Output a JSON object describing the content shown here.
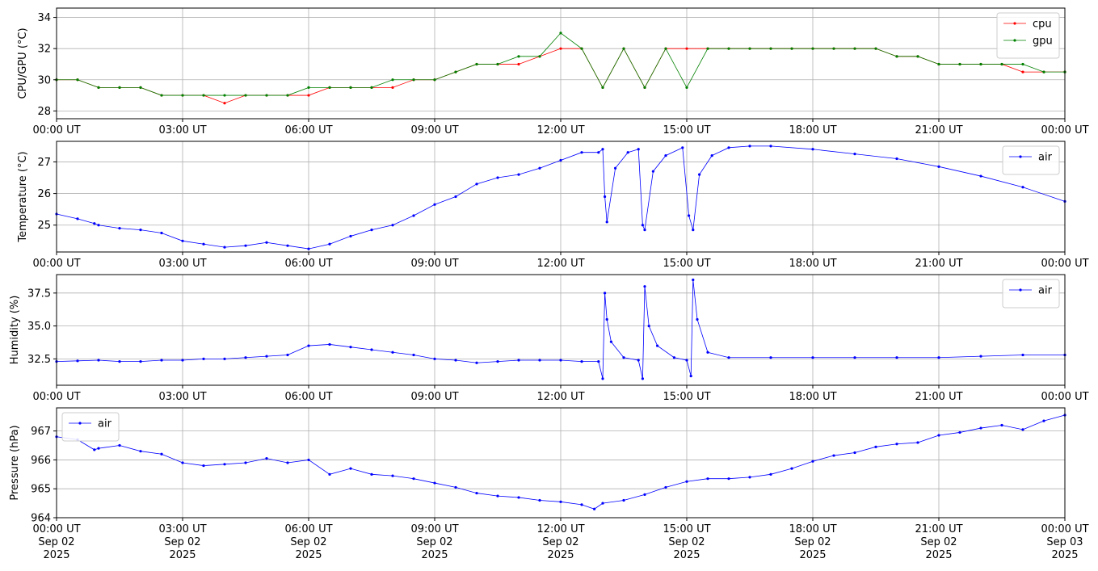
{
  "chart_data": [
    {
      "type": "line",
      "ylabel": "CPU/GPU (°C)",
      "ylim": [
        27.5,
        34.6
      ],
      "yticks": [
        28,
        30,
        32,
        34
      ],
      "ytick_labels": [
        "28",
        "30",
        "32",
        "34"
      ],
      "xlim": [
        "2025-09-02 00:00 UT",
        "2025-09-03 00:00 UT"
      ],
      "xticks": [
        "2025-09-02 00:00",
        "2025-09-02 03:00",
        "2025-09-02 06:00",
        "2025-09-02 09:00",
        "2025-09-02 12:00",
        "2025-09-02 15:00",
        "2025-09-02 18:00",
        "2025-09-02 21:00",
        "2025-09-03 00:00"
      ],
      "xtick_labels": [
        "00:00 UT",
        "03:00 UT",
        "06:00 UT",
        "09:00 UT",
        "12:00 UT",
        "15:00 UT",
        "18:00 UT",
        "21:00 UT",
        "00:00 UT"
      ],
      "grid": true,
      "legend": "upper right",
      "series": [
        {
          "name": "cpu",
          "color": "#ff0000",
          "x_hours": [
            0,
            0.5,
            1,
            1.5,
            2,
            2.5,
            3,
            3.5,
            4,
            4.5,
            5,
            5.5,
            6,
            6.5,
            7,
            7.5,
            8,
            8.5,
            9,
            9.5,
            10,
            10.5,
            11,
            11.5,
            12,
            12.5,
            13,
            13.5,
            14,
            14.5,
            15,
            15.5,
            16,
            16.5,
            17,
            17.5,
            18,
            18.5,
            19,
            19.5,
            20,
            20.5,
            21,
            21.5,
            22,
            22.5,
            23,
            23.5,
            24
          ],
          "values": [
            30.0,
            30.0,
            29.5,
            29.5,
            29.5,
            29.0,
            29.0,
            29.0,
            28.5,
            29.0,
            29.0,
            29.0,
            29.0,
            29.5,
            29.5,
            29.5,
            29.5,
            30.0,
            30.0,
            30.5,
            31.0,
            31.0,
            31.0,
            31.5,
            32.0,
            32.0,
            29.5,
            32.0,
            29.5,
            32.0,
            32.0,
            32.0,
            32.0,
            32.0,
            32.0,
            32.0,
            32.0,
            32.0,
            32.0,
            32.0,
            31.5,
            31.5,
            31.0,
            31.0,
            31.0,
            31.0,
            30.5,
            30.5,
            30.5
          ]
        },
        {
          "name": "gpu",
          "color": "#008000",
          "x_hours": [
            0,
            0.5,
            1,
            1.5,
            2,
            2.5,
            3,
            3.5,
            4,
            4.5,
            5,
            5.5,
            6,
            6.5,
            7,
            7.5,
            8,
            8.5,
            9,
            9.5,
            10,
            10.5,
            11,
            11.5,
            12,
            12.5,
            13,
            13.5,
            14,
            14.5,
            15,
            15.5,
            16,
            16.5,
            17,
            17.5,
            18,
            18.5,
            19,
            19.5,
            20,
            20.5,
            21,
            21.5,
            22,
            22.5,
            23,
            23.5,
            24
          ],
          "values": [
            30.0,
            30.0,
            29.5,
            29.5,
            29.5,
            29.0,
            29.0,
            29.0,
            29.0,
            29.0,
            29.0,
            29.0,
            29.5,
            29.5,
            29.5,
            29.5,
            30.0,
            30.0,
            30.0,
            30.5,
            31.0,
            31.0,
            31.5,
            31.5,
            33.0,
            32.0,
            29.5,
            32.0,
            29.5,
            32.0,
            29.5,
            32.0,
            32.0,
            32.0,
            32.0,
            32.0,
            32.0,
            32.0,
            32.0,
            32.0,
            31.5,
            31.5,
            31.0,
            31.0,
            31.0,
            31.0,
            31.0,
            30.5,
            30.5
          ]
        }
      ]
    },
    {
      "type": "line",
      "ylabel": "Temperature (°C)",
      "ylim": [
        24.15,
        27.65
      ],
      "yticks": [
        25,
        26,
        27
      ],
      "ytick_labels": [
        "25",
        "26",
        "27"
      ],
      "xlim": [
        "2025-09-02 00:00 UT",
        "2025-09-03 00:00 UT"
      ],
      "xtick_labels": [
        "00:00 UT",
        "03:00 UT",
        "06:00 UT",
        "09:00 UT",
        "12:00 UT",
        "15:00 UT",
        "18:00 UT",
        "21:00 UT",
        "00:00 UT"
      ],
      "grid": true,
      "legend": "upper right",
      "series": [
        {
          "name": "air",
          "color": "#0000ff",
          "x_hours": [
            0,
            0.5,
            0.9,
            1.0,
            1.5,
            2.0,
            2.5,
            3.0,
            3.5,
            4.0,
            4.5,
            5.0,
            5.5,
            6.0,
            6.5,
            7.0,
            7.5,
            8.0,
            8.5,
            9.0,
            9.5,
            10.0,
            10.5,
            11.0,
            11.5,
            12.0,
            12.5,
            12.9,
            13.0,
            13.05,
            13.1,
            13.3,
            13.6,
            13.85,
            13.95,
            14.0,
            14.2,
            14.5,
            14.9,
            15.05,
            15.15,
            15.3,
            15.6,
            16.0,
            16.5,
            17.0,
            18.0,
            19.0,
            20.0,
            21.0,
            22.0,
            23.0,
            24.0
          ],
          "values": [
            25.35,
            25.2,
            25.05,
            25.0,
            24.9,
            24.85,
            24.75,
            24.5,
            24.4,
            24.3,
            24.35,
            24.45,
            24.35,
            24.25,
            24.4,
            24.65,
            24.85,
            25.0,
            25.3,
            25.65,
            25.9,
            26.3,
            26.5,
            26.6,
            26.8,
            27.05,
            27.3,
            27.3,
            27.4,
            25.9,
            25.1,
            26.8,
            27.3,
            27.4,
            25.0,
            24.85,
            26.7,
            27.2,
            27.45,
            25.3,
            24.85,
            26.6,
            27.2,
            27.45,
            27.5,
            27.5,
            27.4,
            27.25,
            27.1,
            26.85,
            26.55,
            26.2,
            25.75
          ]
        }
      ]
    },
    {
      "type": "line",
      "ylabel": "Humidity (%)",
      "ylim": [
        30.5,
        38.9
      ],
      "yticks": [
        32.5,
        35.0,
        37.5
      ],
      "ytick_labels": [
        "32.5",
        "35.0",
        "37.5"
      ],
      "xlim": [
        "2025-09-02 00:00 UT",
        "2025-09-03 00:00 UT"
      ],
      "xtick_labels": [
        "00:00 UT",
        "03:00 UT",
        "06:00 UT",
        "09:00 UT",
        "12:00 UT",
        "15:00 UT",
        "18:00 UT",
        "21:00 UT",
        "00:00 UT"
      ],
      "grid": true,
      "legend": "upper right",
      "series": [
        {
          "name": "air",
          "color": "#0000ff",
          "x_hours": [
            0,
            0.5,
            1.0,
            1.5,
            2.0,
            2.5,
            3.0,
            3.5,
            4.0,
            4.5,
            5.0,
            5.5,
            6.0,
            6.5,
            7.0,
            7.5,
            8.0,
            8.5,
            9.0,
            9.5,
            10.0,
            10.5,
            11.0,
            11.5,
            12.0,
            12.5,
            12.9,
            13.0,
            13.05,
            13.1,
            13.2,
            13.5,
            13.85,
            13.95,
            14.0,
            14.1,
            14.3,
            14.7,
            15.0,
            15.1,
            15.15,
            15.25,
            15.5,
            16.0,
            17.0,
            18.0,
            19.0,
            20.0,
            21.0,
            22.0,
            23.0,
            24.0
          ],
          "values": [
            32.3,
            32.35,
            32.4,
            32.3,
            32.3,
            32.4,
            32.4,
            32.5,
            32.5,
            32.6,
            32.7,
            32.8,
            33.5,
            33.6,
            33.4,
            33.2,
            33.0,
            32.8,
            32.5,
            32.4,
            32.2,
            32.3,
            32.4,
            32.4,
            32.4,
            32.3,
            32.3,
            31.0,
            37.5,
            35.5,
            33.8,
            32.6,
            32.4,
            31.0,
            38.0,
            35.0,
            33.5,
            32.6,
            32.4,
            31.2,
            38.5,
            35.5,
            33.0,
            32.6,
            32.6,
            32.6,
            32.6,
            32.6,
            32.6,
            32.7,
            32.8,
            32.8
          ]
        }
      ]
    },
    {
      "type": "line",
      "ylabel": "Pressure (hPa)",
      "ylim": [
        964.0,
        967.8
      ],
      "yticks": [
        964,
        965,
        966,
        967
      ],
      "ytick_labels": [
        "964",
        "965",
        "966",
        "967"
      ],
      "xlim": [
        "2025-09-02 00:00 UT",
        "2025-09-03 00:00 UT"
      ],
      "xtick_labels": [
        "00:00 UT\nSep 02\n2025",
        "03:00 UT\nSep 02\n2025",
        "06:00 UT\nSep 02\n2025",
        "09:00 UT\nSep 02\n2025",
        "12:00 UT\nSep 02\n2025",
        "15:00 UT\nSep 02\n2025",
        "18:00 UT\nSep 02\n2025",
        "21:00 UT\nSep 02\n2025",
        "00:00 UT\nSep 03\n2025"
      ],
      "grid": true,
      "legend": "upper left",
      "series": [
        {
          "name": "air",
          "color": "#0000ff",
          "x_hours": [
            0,
            0.5,
            0.9,
            1.0,
            1.5,
            2.0,
            2.5,
            3.0,
            3.5,
            4.0,
            4.5,
            5.0,
            5.5,
            6.0,
            6.5,
            7.0,
            7.5,
            8.0,
            8.5,
            9.0,
            9.5,
            10.0,
            10.5,
            11.0,
            11.5,
            12.0,
            12.5,
            12.8,
            13.0,
            13.5,
            14.0,
            14.5,
            15.0,
            15.5,
            16.0,
            16.5,
            17.0,
            17.5,
            18.0,
            18.5,
            19.0,
            19.5,
            20.0,
            20.5,
            21.0,
            21.5,
            22.0,
            22.5,
            23.0,
            23.5,
            24.0
          ],
          "values": [
            966.8,
            966.7,
            966.35,
            966.4,
            966.5,
            966.3,
            966.2,
            965.9,
            965.8,
            965.85,
            965.9,
            966.05,
            965.9,
            966.0,
            965.5,
            965.7,
            965.5,
            965.45,
            965.35,
            965.2,
            965.05,
            964.85,
            964.75,
            964.7,
            964.6,
            964.55,
            964.45,
            964.3,
            964.5,
            964.6,
            964.8,
            965.05,
            965.25,
            965.35,
            965.35,
            965.4,
            965.5,
            965.7,
            965.95,
            966.15,
            966.25,
            966.45,
            966.55,
            966.6,
            966.85,
            966.95,
            967.1,
            967.2,
            967.05,
            967.35,
            967.55
          ]
        }
      ]
    }
  ]
}
